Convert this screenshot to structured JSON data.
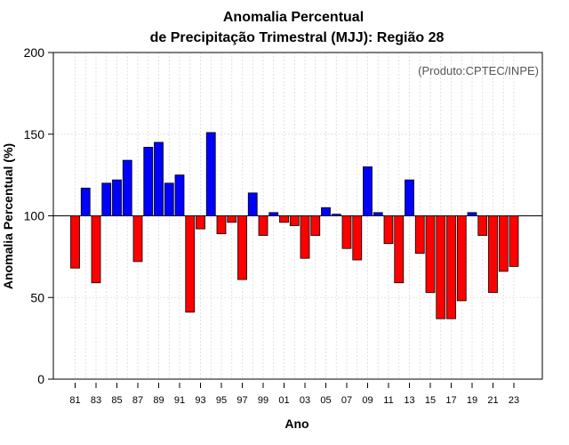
{
  "chart_data": {
    "type": "bar",
    "title_line1": "Anomalia Percentual",
    "title_line2": "de Precipitação Trimestral (MJJ): Região 28",
    "xlabel": "Ano",
    "ylabel": "Anomalia Percentual (%)",
    "annotation": "(Produto:CPTEC/INPE)",
    "ylim": [
      0,
      200
    ],
    "yticks": [
      "0",
      "50",
      "100",
      "150",
      "200"
    ],
    "baseline": 100,
    "grid": true,
    "colors": {
      "above": "#0000ff",
      "below": "#ff0000",
      "outline": "#000000",
      "grid": "#d9d9d9"
    },
    "categories": [
      "81",
      "82",
      "83",
      "84",
      "85",
      "86",
      "87",
      "88",
      "89",
      "90",
      "91",
      "92",
      "93",
      "94",
      "95",
      "96",
      "97",
      "98",
      "99",
      "00",
      "01",
      "02",
      "03",
      "04",
      "05",
      "06",
      "07",
      "08",
      "09",
      "10",
      "11",
      "12",
      "13",
      "14",
      "15",
      "16",
      "17",
      "18",
      "19",
      "20",
      "21",
      "22",
      "23"
    ],
    "tick_labels": [
      "81",
      "83",
      "85",
      "87",
      "89",
      "91",
      "93",
      "95",
      "97",
      "99",
      "01",
      "03",
      "05",
      "07",
      "09",
      "11",
      "13",
      "15",
      "17",
      "19",
      "21",
      "23"
    ],
    "values": [
      68,
      117,
      59,
      120,
      122,
      134,
      72,
      142,
      145,
      120,
      125,
      41,
      92,
      151,
      89,
      96,
      61,
      114,
      88,
      102,
      96,
      94,
      74,
      88,
      105,
      101,
      80,
      73,
      130,
      102,
      83,
      59,
      122,
      77,
      53,
      37,
      37,
      48,
      102,
      88,
      53,
      66,
      69
    ]
  }
}
